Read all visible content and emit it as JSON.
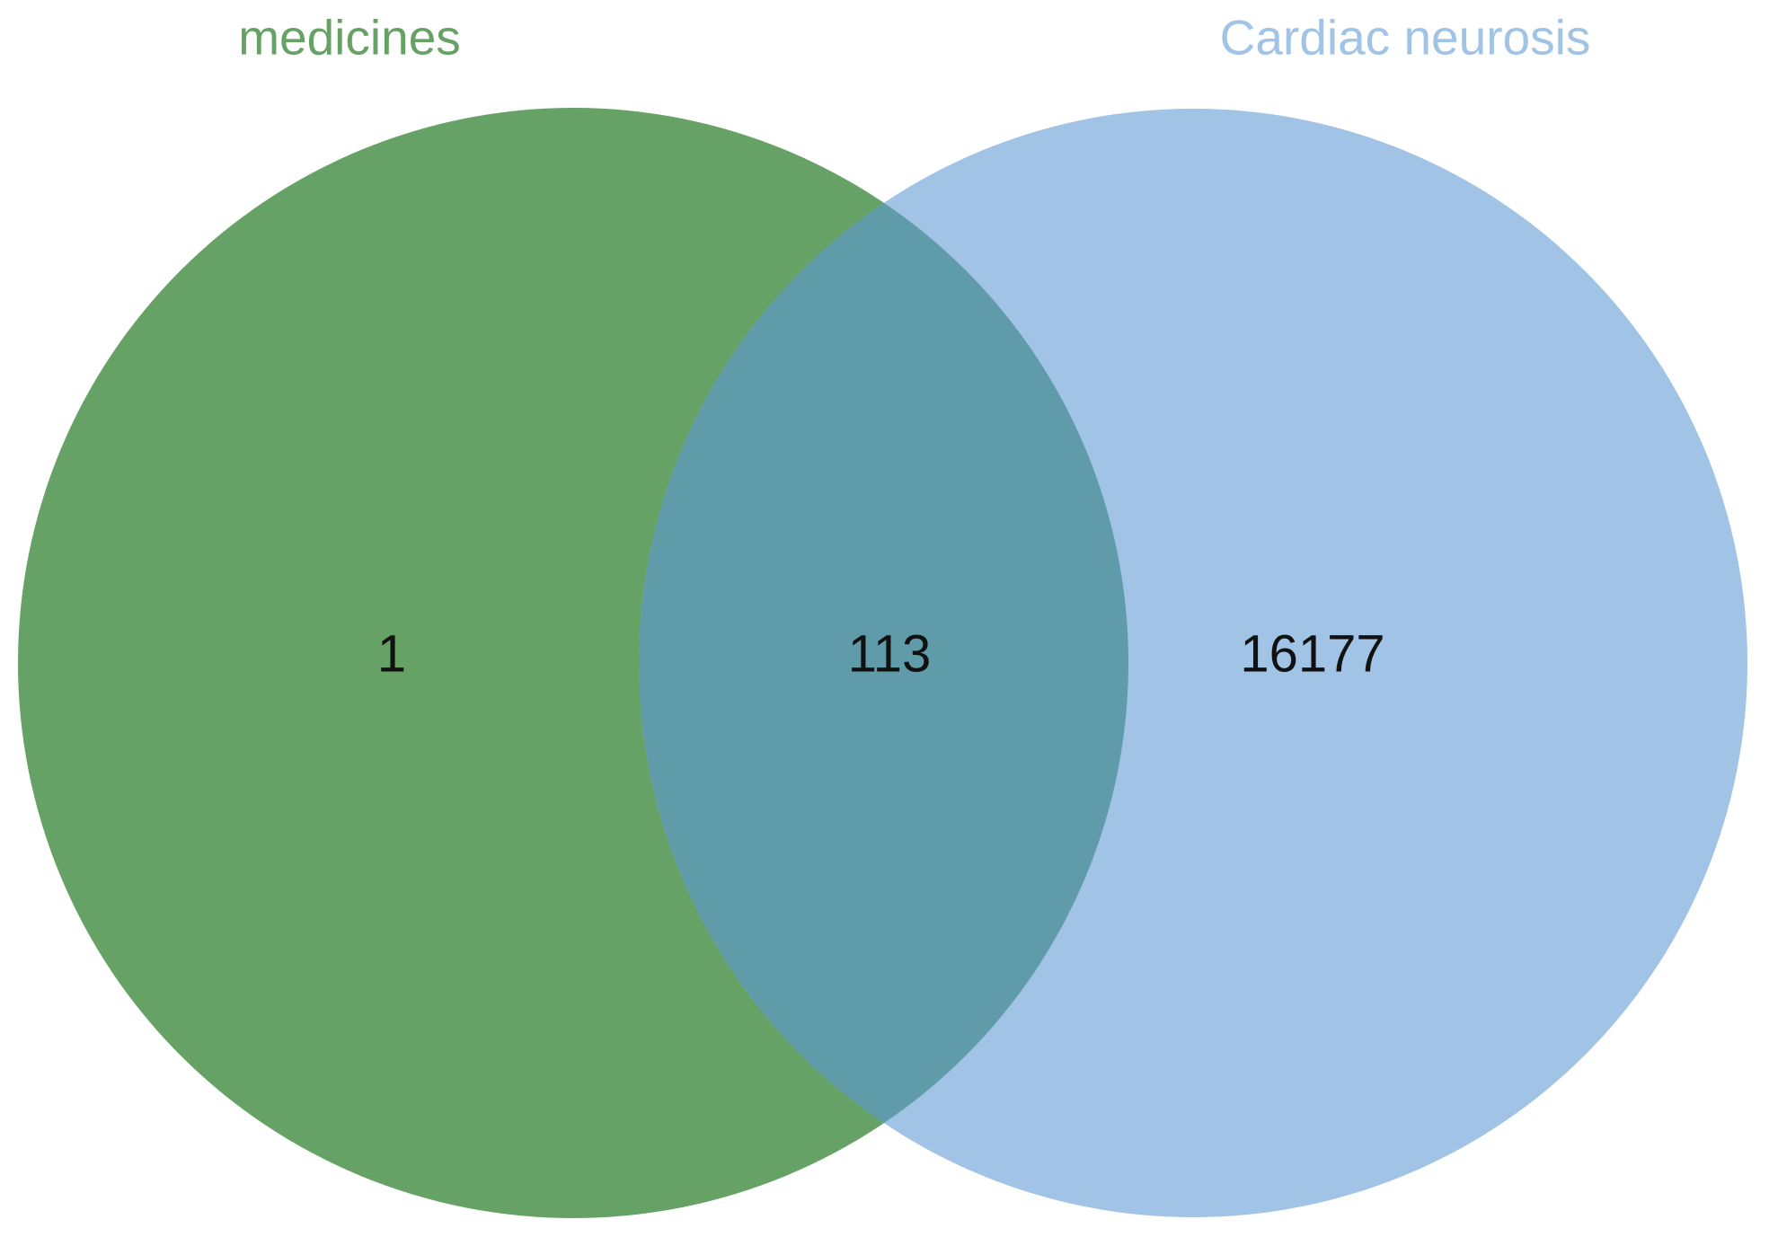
{
  "chart_data": {
    "type": "venn",
    "sets": [
      {
        "name": "medicines",
        "color": "#66a266"
      },
      {
        "name": "Cardiac neurosis",
        "color": "#a0c3e6"
      }
    ],
    "values": [
      1,
      113,
      16177
    ],
    "overlap_color": "#5f9ba8"
  }
}
